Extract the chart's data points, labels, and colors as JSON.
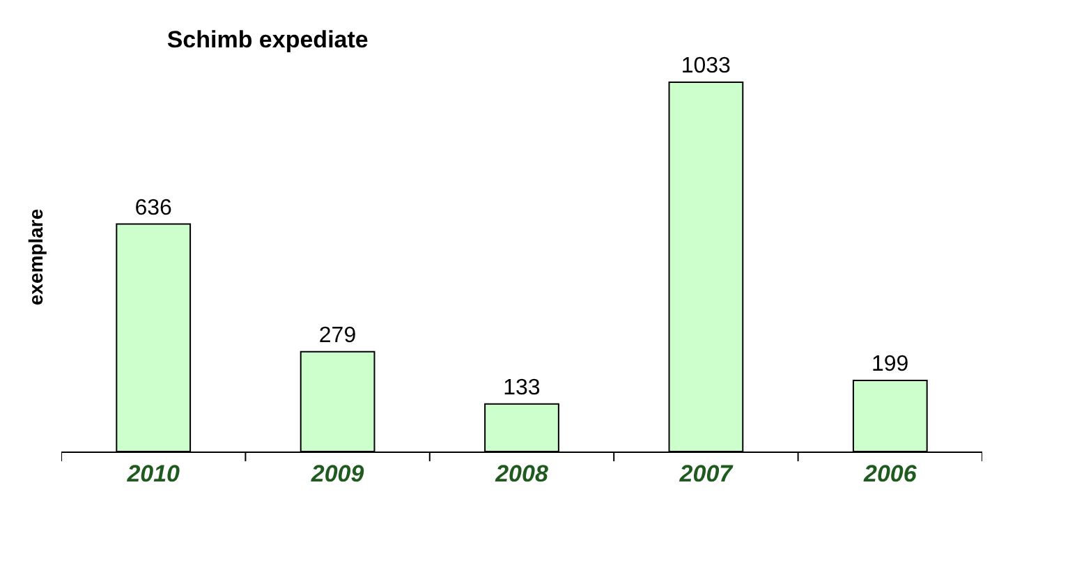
{
  "chart_data": {
    "type": "bar",
    "title": "Schimb expediate",
    "ylabel": "exemplare",
    "categories": [
      "2010",
      "2009",
      "2008",
      "2007",
      "2006"
    ],
    "values": [
      636,
      279,
      133,
      1033,
      199
    ],
    "color": "#ccffcc",
    "data_labels": true,
    "tick_labels": "x"
  }
}
